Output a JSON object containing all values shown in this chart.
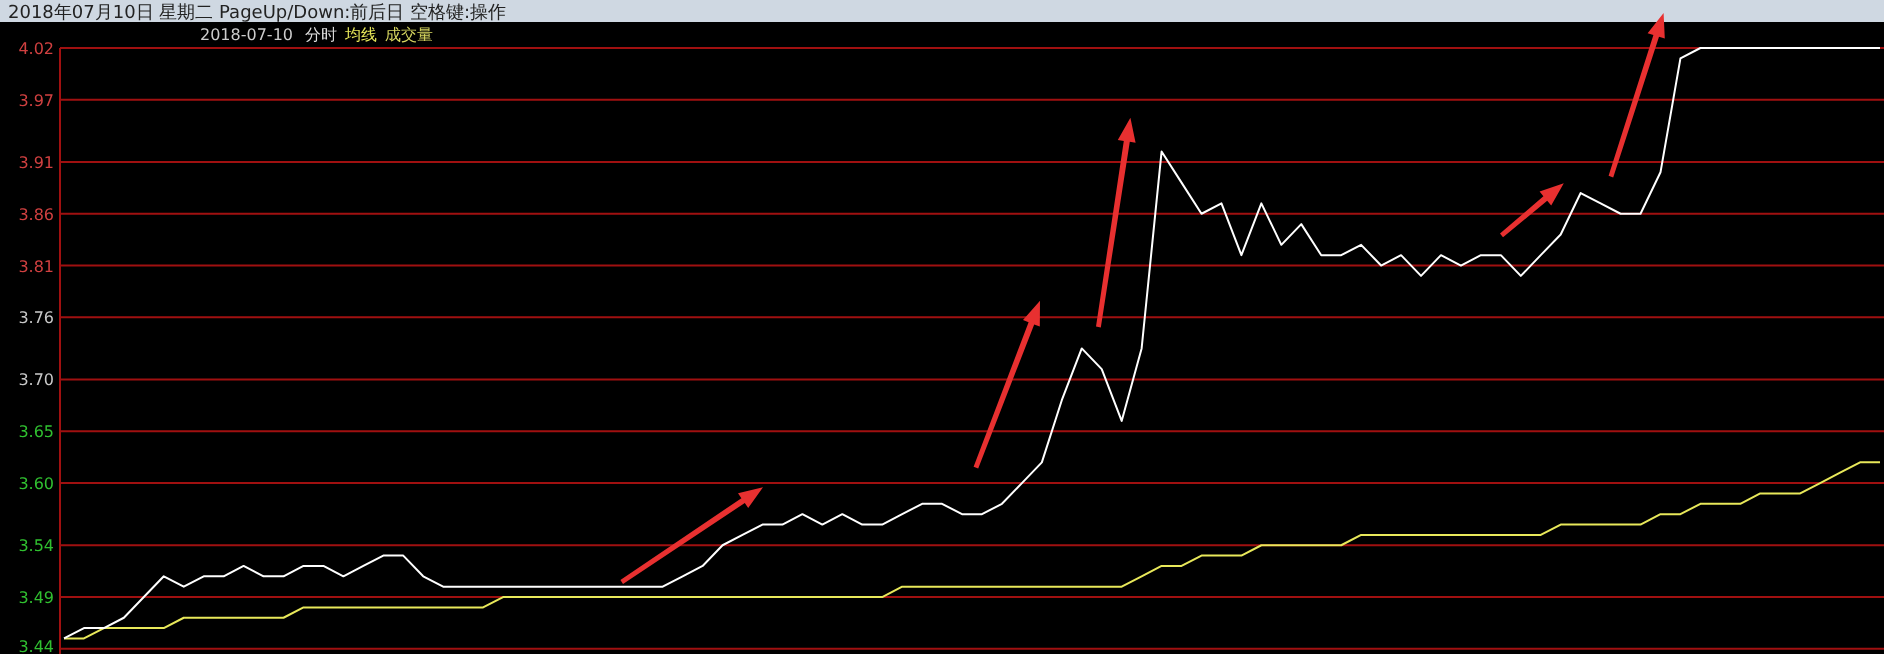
{
  "chart_data": {
    "type": "line",
    "title": "2018年07月10日 星期二 PageUp/Down:前后日 空格键:操作",
    "subtitle": "2018-07-10",
    "annotations": [
      "成交量"
    ],
    "categories": [
      null,
      null,
      null,
      null,
      null,
      null,
      null,
      null,
      null,
      null,
      null,
      null,
      null,
      null,
      null,
      null,
      null,
      null,
      null,
      null,
      null,
      null,
      null,
      null,
      null,
      null,
      null,
      null,
      null,
      null,
      null,
      null,
      null,
      null,
      null,
      null,
      null,
      null,
      null,
      null,
      null,
      null,
      null,
      null,
      null,
      null,
      null,
      null,
      null,
      null,
      null,
      null,
      null,
      null,
      null,
      null,
      null,
      null,
      null,
      null,
      null,
      null,
      null,
      null,
      null,
      null,
      null,
      null,
      null,
      null,
      null,
      null,
      null,
      null,
      null,
      null,
      null,
      null,
      null,
      null,
      null,
      null,
      null,
      null,
      null,
      null,
      null,
      null,
      null,
      null,
      null,
      null
    ],
    "series": [
      {
        "name": "分时",
        "color": "#ffffff",
        "values": [
          3.45,
          3.46,
          3.46,
          3.47,
          3.49,
          3.51,
          3.5,
          3.51,
          3.51,
          3.52,
          3.51,
          3.51,
          3.52,
          3.52,
          3.51,
          3.52,
          3.53,
          3.53,
          3.51,
          3.5,
          3.5,
          3.5,
          3.5,
          3.5,
          3.5,
          3.5,
          3.5,
          3.5,
          3.5,
          3.5,
          3.5,
          3.51,
          3.52,
          3.54,
          3.55,
          3.56,
          3.56,
          3.57,
          3.56,
          3.57,
          3.56,
          3.56,
          3.57,
          3.58,
          3.58,
          3.57,
          3.57,
          3.58,
          3.6,
          3.62,
          3.68,
          3.73,
          3.71,
          3.66,
          3.73,
          3.92,
          3.89,
          3.86,
          3.87,
          3.82,
          3.87,
          3.83,
          3.85,
          3.82,
          3.82,
          3.83,
          3.81,
          3.82,
          3.8,
          3.82,
          3.81,
          3.82,
          3.82,
          3.8,
          3.82,
          3.84,
          3.88,
          3.87,
          3.86,
          3.86,
          3.9,
          4.01,
          4.02,
          4.02,
          4.02,
          4.02,
          4.02,
          4.02,
          4.02,
          4.02,
          4.02,
          4.02
        ]
      },
      {
        "name": "均线",
        "color": "#e8e85a",
        "values": [
          3.45,
          3.45,
          3.46,
          3.46,
          3.46,
          3.46,
          3.47,
          3.47,
          3.47,
          3.47,
          3.47,
          3.47,
          3.48,
          3.48,
          3.48,
          3.48,
          3.48,
          3.48,
          3.48,
          3.48,
          3.48,
          3.48,
          3.49,
          3.49,
          3.49,
          3.49,
          3.49,
          3.49,
          3.49,
          3.49,
          3.49,
          3.49,
          3.49,
          3.49,
          3.49,
          3.49,
          3.49,
          3.49,
          3.49,
          3.49,
          3.49,
          3.49,
          3.5,
          3.5,
          3.5,
          3.5,
          3.5,
          3.5,
          3.5,
          3.5,
          3.5,
          3.5,
          3.5,
          3.5,
          3.51,
          3.52,
          3.52,
          3.53,
          3.53,
          3.53,
          3.54,
          3.54,
          3.54,
          3.54,
          3.54,
          3.55,
          3.55,
          3.55,
          3.55,
          3.55,
          3.55,
          3.55,
          3.55,
          3.55,
          3.55,
          3.56,
          3.56,
          3.56,
          3.56,
          3.56,
          3.57,
          3.57,
          3.58,
          3.58,
          3.58,
          3.59,
          3.59,
          3.59,
          3.6,
          3.61,
          3.62,
          3.62
        ]
      }
    ],
    "ylim": [
      3.435,
      4.02
    ],
    "yticks": [
      3.44,
      3.49,
      3.54,
      {
        "value": 3.6,
        "label": "3.60"
      },
      3.65,
      {
        "value": 3.7,
        "label": "3.70"
      },
      3.76,
      3.81,
      3.86,
      3.91,
      3.97,
      4.02
    ],
    "grid": "y",
    "tick_labels": "y",
    "legend": "top left",
    "line_style": "solid"
  }
}
